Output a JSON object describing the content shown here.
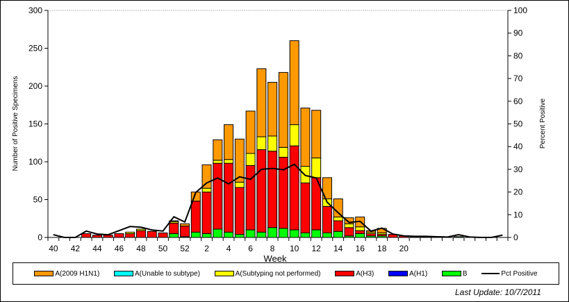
{
  "chart_data": {
    "type": "bar",
    "stacked": true,
    "xlabel": "Week",
    "ylabel": "Number of Positive Specimens",
    "y2label": "Percent Positive",
    "ylim": [
      0,
      300
    ],
    "y2lim": [
      0,
      100
    ],
    "yticks": [
      0,
      50,
      100,
      150,
      200,
      250,
      300
    ],
    "y2ticks": [
      0,
      10,
      20,
      30,
      40,
      50,
      60,
      70,
      80,
      90,
      100
    ],
    "categories": [
      40,
      41,
      42,
      43,
      44,
      45,
      46,
      47,
      48,
      49,
      50,
      51,
      52,
      1,
      2,
      3,
      4,
      5,
      6,
      7,
      8,
      9,
      10,
      11,
      12,
      13,
      14,
      15,
      16,
      17,
      18,
      19,
      20,
      21,
      22,
      23,
      24,
      25,
      26,
      27,
      28,
      29
    ],
    "xtick_labels": [
      "40",
      "42",
      "44",
      "46",
      "48",
      "50",
      "52",
      "2",
      "4",
      "6",
      "8",
      "10",
      "12",
      "14",
      "16",
      "18",
      "20"
    ],
    "series": [
      {
        "name": "B",
        "color": "#00ff00",
        "values": [
          0,
          0,
          0,
          0,
          0,
          0,
          0,
          0,
          0,
          0,
          0,
          5,
          1,
          7,
          5,
          11,
          7,
          4,
          10,
          7,
          13,
          12,
          10,
          6,
          10,
          6,
          8,
          2,
          5,
          2,
          2,
          0,
          0,
          0,
          0,
          0,
          0,
          1,
          0,
          0,
          0,
          0
        ]
      },
      {
        "name": "A(H1)",
        "color": "#0000ff",
        "values": [
          0,
          0,
          0,
          0,
          0,
          0,
          0,
          0,
          0,
          0,
          0,
          0,
          0,
          0,
          0,
          0,
          0,
          0,
          0,
          0,
          0,
          0,
          0,
          0,
          0,
          0,
          0,
          0,
          0,
          0,
          0,
          0,
          0,
          0,
          0,
          0,
          0,
          0,
          0,
          0,
          0,
          0
        ]
      },
      {
        "name": "A(H3)",
        "color": "#ff0000",
        "values": [
          0,
          0,
          0,
          5,
          3,
          3,
          5,
          5,
          9,
          8,
          6,
          14,
          14,
          41,
          55,
          87,
          91,
          62,
          85,
          109,
          101,
          94,
          111,
          66,
          69,
          35,
          14,
          11,
          4,
          3,
          2,
          4,
          2,
          1,
          1,
          1,
          0,
          0,
          0,
          0,
          0,
          0
        ]
      },
      {
        "name": "A(Subtyping not performed)",
        "color": "#ffff00",
        "values": [
          0,
          0,
          0,
          0,
          0,
          0,
          0,
          2,
          2,
          0,
          0,
          2,
          0,
          0,
          5,
          4,
          5,
          7,
          16,
          17,
          20,
          13,
          28,
          22,
          26,
          10,
          5,
          5,
          5,
          2,
          2,
          0,
          0,
          0,
          0,
          0,
          0,
          0,
          0,
          0,
          0,
          0
        ]
      },
      {
        "name": "A(Unable to subtype)",
        "color": "#00ffff",
        "values": [
          0,
          0,
          0,
          0,
          0,
          0,
          0,
          0,
          0,
          0,
          0,
          0,
          0,
          0,
          0,
          0,
          0,
          0,
          0,
          0,
          0,
          0,
          0,
          0,
          0,
          0,
          0,
          0,
          0,
          0,
          0,
          0,
          0,
          0,
          0,
          0,
          0,
          0,
          0,
          0,
          0,
          0
        ]
      },
      {
        "name": "A(2009 H1N1)",
        "color": "#ff9900",
        "values": [
          0,
          0,
          0,
          0,
          0,
          0,
          0,
          0,
          0,
          0,
          0,
          1,
          3,
          12,
          31,
          27,
          46,
          57,
          56,
          90,
          71,
          99,
          111,
          77,
          63,
          28,
          24,
          8,
          13,
          2,
          6,
          0,
          0,
          0,
          0,
          0,
          0,
          0,
          0,
          0,
          0,
          0
        ]
      }
    ],
    "line": {
      "name": "Pct Positive",
      "color": "#000000",
      "values": [
        1.2,
        0,
        0,
        2.8,
        1.5,
        1.2,
        3,
        4.8,
        4.5,
        3.3,
        2.8,
        9.1,
        6.8,
        19.8,
        24,
        26.2,
        23.6,
        26.7,
        25.6,
        30,
        30.4,
        29.8,
        32.2,
        27.3,
        26.2,
        15.5,
        10.9,
        6.6,
        7.1,
        2.8,
        4.1,
        1.5,
        0.7,
        0.5,
        0.5,
        0.3,
        0.2,
        1.2,
        0.2,
        0,
        0,
        1
      ]
    },
    "legend_order": [
      "A(2009 H1N1)",
      "A(Unable to subtype)",
      "A(Subtyping not performed)",
      "A(H3)",
      "A(H1)",
      "B",
      "Pct Positive"
    ],
    "legend_placement": "bottom",
    "grid": false
  },
  "footer": {
    "last_update": "Last Update: 10/7/2011"
  }
}
